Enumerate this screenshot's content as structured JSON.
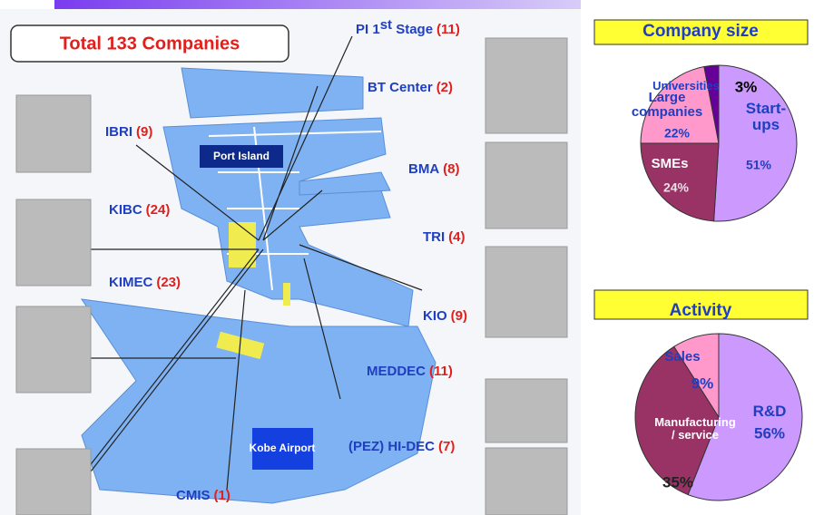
{
  "map": {
    "total": "Total 133 Companies",
    "port_island": "Port Island",
    "airport": "Kobe Airport",
    "facilities": [
      {
        "name": "PI 1",
        "sup": "st",
        "rest": " Stage",
        "count": "(11)"
      },
      {
        "name": "BT Center",
        "count": "(2)"
      },
      {
        "name": "IBRI",
        "count": "(9)"
      },
      {
        "name": "BMA",
        "count": "(8)"
      },
      {
        "name": "KIBC",
        "count": "(24)"
      },
      {
        "name": "TRI",
        "count": "(4)"
      },
      {
        "name": "KIMEC",
        "count": "(23)"
      },
      {
        "name": "KIO",
        "count": "(9)"
      },
      {
        "name": "MEDDEC",
        "count": "(11)"
      },
      {
        "name": "(PEZ) HI-DEC",
        "count": "(7)"
      },
      {
        "name": "CMIS",
        "count": "(1)"
      }
    ]
  },
  "chart_data": [
    {
      "type": "pie",
      "title": "Company size",
      "categories": [
        "Start-\nups",
        "SMEs",
        "Large\ncompanies",
        "Universities"
      ],
      "values": [
        51,
        24,
        22,
        3
      ],
      "value_labels": [
        "51%",
        "24%",
        "22%",
        "3%"
      ],
      "colors": [
        "#cc99ff",
        "#993366",
        "#ff99cc",
        "#660099"
      ]
    },
    {
      "type": "pie",
      "title": "Activity",
      "categories": [
        "R&D",
        "Manufacturing\n/ service",
        "Sales"
      ],
      "values": [
        56,
        35,
        9
      ],
      "value_labels": [
        "56%",
        "35%",
        "9%"
      ],
      "colors": [
        "#cc99ff",
        "#993366",
        "#ff99cc"
      ]
    }
  ]
}
